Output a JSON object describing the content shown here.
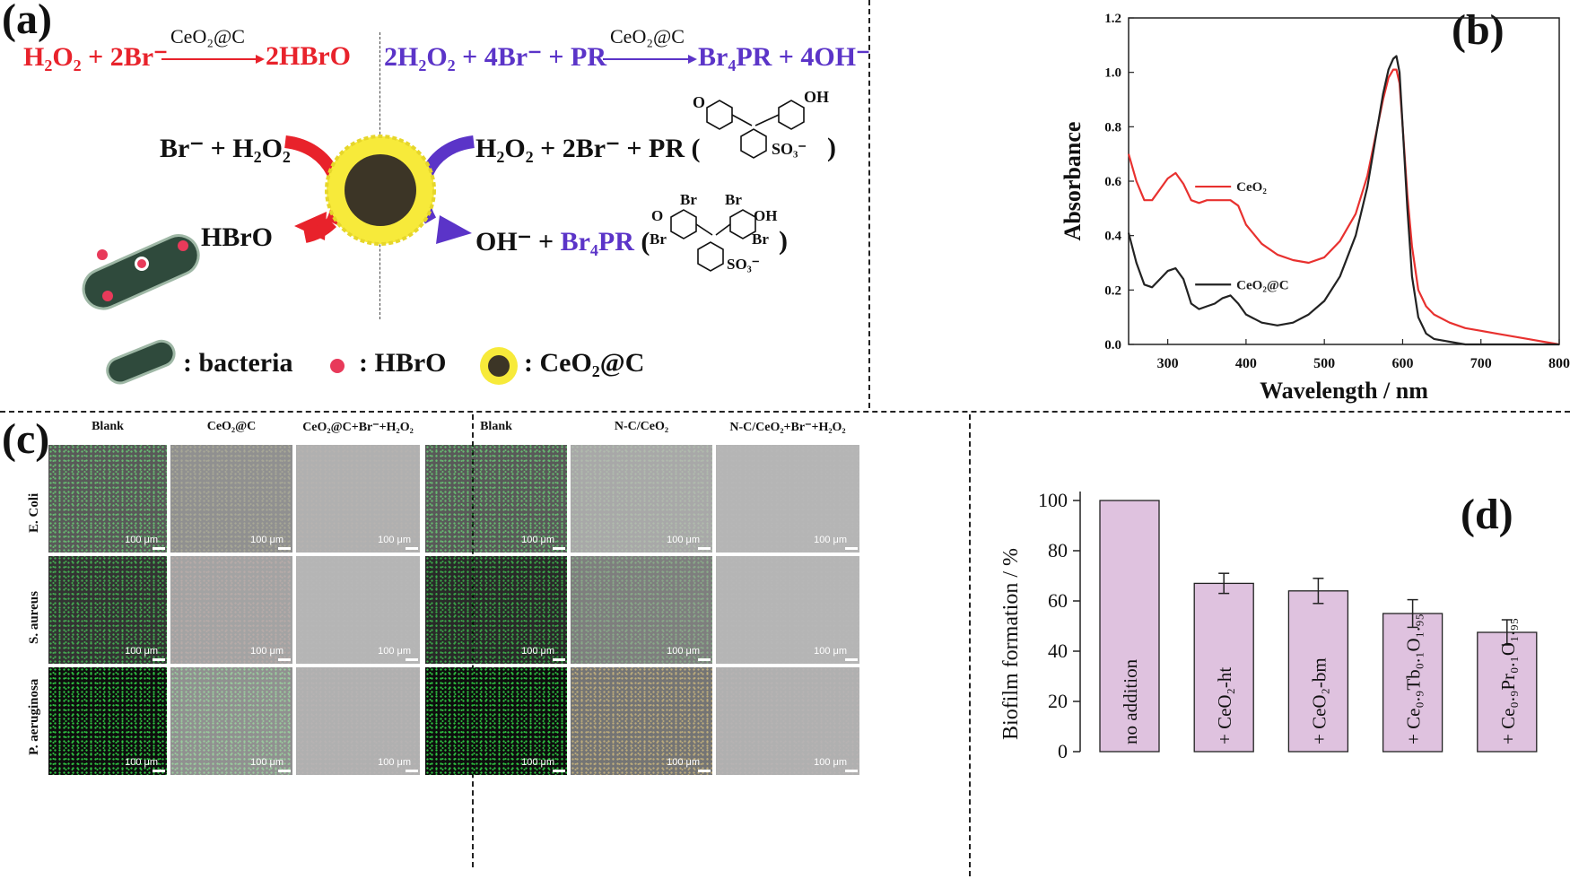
{
  "panel_a": {
    "label": "(a)",
    "rxn_left": {
      "lhs": "H₂O₂ + 2Br⁻",
      "catalyst": "CeO₂@C",
      "rhs": "2HBrO"
    },
    "rxn_right": {
      "lhs": "2H₂O₂ + 4Br⁻ + PR",
      "catalyst": "CeO₂@C",
      "rhs": "Br₄PR + 4OH⁻"
    },
    "in_left": "Br⁻ + H₂O₂",
    "out_left": "HBrO",
    "in_right": "H₂O₂ + 2Br⁻ + PR (",
    "in_right_close": ")",
    "out_right_a": "OH⁻ + ",
    "out_right_b": "Br₄PR",
    "out_right_c": " (",
    "out_right_close": ")",
    "pr_struct": {
      "o": "O",
      "oh": "OH",
      "so3": "SO₃⁻"
    },
    "br4pr_struct": {
      "o": "O",
      "oh": "OH",
      "br": "Br",
      "so3": "SO₃⁻"
    },
    "legend": {
      "bacteria": ": bacteria",
      "hbro": ": HBrO",
      "ceo2c": ": CeO₂@C"
    }
  },
  "panel_b": {
    "label": "(b)",
    "chart_data": {
      "type": "line",
      "xlabel": "Wavelength / nm",
      "ylabel": "Absorbance",
      "xlim": [
        250,
        800
      ],
      "ylim": [
        0,
        1.2
      ],
      "xticks": [
        "300",
        "400",
        "500",
        "600",
        "700",
        "800"
      ],
      "yticks": [
        "0.0",
        "0.2",
        "0.4",
        "0.6",
        "0.8",
        "1.0",
        "1.2"
      ],
      "series": [
        {
          "name": "CeO₂",
          "color": "#e8312f",
          "x": [
            250,
            260,
            270,
            280,
            290,
            300,
            310,
            320,
            330,
            340,
            350,
            360,
            370,
            380,
            390,
            400,
            420,
            440,
            460,
            480,
            500,
            520,
            540,
            555,
            565,
            575,
            582,
            588,
            592,
            596,
            600,
            606,
            612,
            620,
            630,
            640,
            660,
            680,
            700,
            720,
            740,
            760,
            780,
            800
          ],
          "y": [
            0.7,
            0.6,
            0.53,
            0.53,
            0.57,
            0.61,
            0.63,
            0.59,
            0.53,
            0.52,
            0.53,
            0.53,
            0.53,
            0.53,
            0.51,
            0.44,
            0.37,
            0.33,
            0.31,
            0.3,
            0.32,
            0.38,
            0.48,
            0.62,
            0.76,
            0.9,
            0.98,
            1.01,
            1.01,
            0.96,
            0.8,
            0.55,
            0.36,
            0.2,
            0.14,
            0.11,
            0.08,
            0.06,
            0.05,
            0.04,
            0.03,
            0.02,
            0.01,
            0.0
          ]
        },
        {
          "name": "CeO₂@C",
          "color": "#222222",
          "x": [
            250,
            260,
            270,
            280,
            290,
            300,
            310,
            320,
            330,
            340,
            350,
            360,
            370,
            380,
            390,
            400,
            420,
            440,
            460,
            480,
            500,
            520,
            540,
            555,
            565,
            575,
            582,
            588,
            592,
            596,
            600,
            606,
            612,
            620,
            630,
            640,
            660,
            680,
            700,
            720,
            740,
            760,
            780,
            800
          ],
          "y": [
            0.41,
            0.3,
            0.22,
            0.21,
            0.24,
            0.27,
            0.28,
            0.24,
            0.15,
            0.13,
            0.14,
            0.15,
            0.17,
            0.18,
            0.15,
            0.11,
            0.08,
            0.07,
            0.08,
            0.11,
            0.16,
            0.25,
            0.4,
            0.58,
            0.75,
            0.92,
            1.01,
            1.05,
            1.06,
            1.0,
            0.8,
            0.5,
            0.25,
            0.1,
            0.04,
            0.02,
            0.01,
            0.0,
            0.0,
            0.0,
            0.0,
            0.0,
            0.0,
            0.0
          ]
        }
      ],
      "annotations": [
        {
          "text": "CeO₂",
          "series": 0
        },
        {
          "text": "CeO₂@C",
          "series": 1
        }
      ]
    }
  },
  "panel_c": {
    "label": "(c)",
    "left_cols": [
      "Blank",
      "CeO₂@C",
      "CeO₂@C+Br⁻+H₂O₂"
    ],
    "right_cols": [
      "Blank",
      "N-C/CeO₂",
      "N-C/CeO₂+Br⁻+H₂O₂"
    ],
    "rows": [
      "E. Coli",
      "S. aureus",
      "P. aeruginosa"
    ],
    "scale_label": "100 μm"
  },
  "panel_d": {
    "label": "(d)",
    "chart_data": {
      "type": "bar",
      "ylabel": "Biofilm formation / %",
      "ylim": [
        0,
        100
      ],
      "yticks": [
        "0",
        "20",
        "40",
        "60",
        "80",
        "100"
      ],
      "bar_color": "#dfc2df",
      "categories": [
        "no addition",
        "+ CeO₂-ht",
        "+ CeO₂-bm",
        "+ Ce₀.₉Tb₀.₁O₁.₉₅",
        "+ Ce₀.₉Pr₀.₁O₁.₉₅"
      ],
      "values": [
        100,
        67,
        64,
        55,
        47.5
      ],
      "errors": [
        0,
        4,
        5,
        5.5,
        5
      ]
    }
  }
}
